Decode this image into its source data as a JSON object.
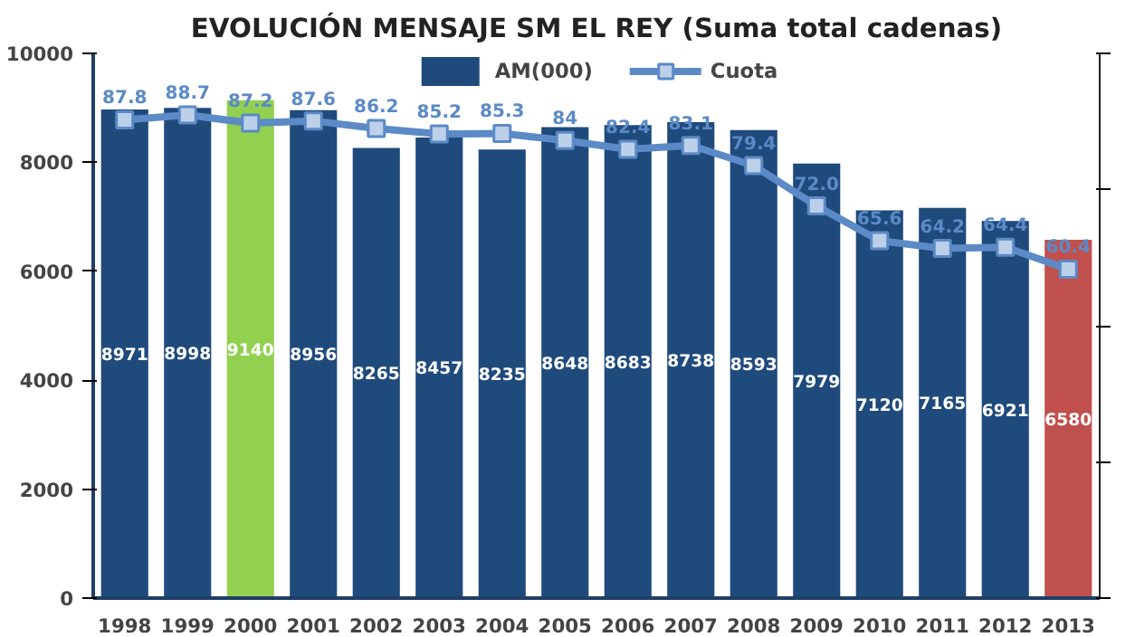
{
  "chart_data": {
    "type": "bar",
    "title": "EVOLUCIÓN MENSAJE SM EL REY (Suma total cadenas)",
    "categories": [
      "1998",
      "1999",
      "2000",
      "2001",
      "2002",
      "2003",
      "2004",
      "2005",
      "2006",
      "2007",
      "2008",
      "2009",
      "2010",
      "2011",
      "2012",
      "2013"
    ],
    "series": [
      {
        "name": "AM(000)",
        "colors": [
          "#1f4a7c",
          "#1f4a7c",
          "#92d050",
          "#1f4a7c",
          "#1f4a7c",
          "#1f4a7c",
          "#1f4a7c",
          "#1f4a7c",
          "#1f4a7c",
          "#1f4a7c",
          "#1f4a7c",
          "#1f4a7c",
          "#1f4a7c",
          "#1f4a7c",
          "#1f4a7c",
          "#c0504d"
        ],
        "values": [
          8971,
          8998,
          9140,
          8956,
          8265,
          8457,
          8235,
          8648,
          8683,
          8738,
          8593,
          7979,
          7120,
          7165,
          6921,
          6580
        ]
      },
      {
        "name": "Cuota",
        "type": "line",
        "axis": "y2",
        "color": "#5b8ac6",
        "marker": "square",
        "values": [
          87.8,
          88.7,
          87.2,
          87.6,
          86.2,
          85.2,
          85.3,
          84,
          82.4,
          83.1,
          79.4,
          72.0,
          65.6,
          64.2,
          64.4,
          60.4
        ],
        "value_labels": [
          "87.8",
          "88.7",
          "87.2",
          "87.6",
          "86.2",
          "85.2",
          "85.3",
          "84",
          "82.4",
          "83.1",
          "79.4",
          "72.0",
          "65.6",
          "64.2",
          "64.4",
          "60.4"
        ]
      }
    ],
    "ylim": [
      0,
      10000
    ],
    "yticks": [
      0,
      2000,
      4000,
      6000,
      8000,
      10000
    ],
    "y2lim": [
      0,
      100
    ],
    "y2ticks": [
      {
        "value": 0,
        "label": null
      },
      {
        "value": 25,
        "label": null
      },
      {
        "value": 50,
        "label": null
      },
      {
        "value": 75,
        "label": null
      },
      {
        "value": 100,
        "label": null
      }
    ],
    "data_labels": true,
    "legend": "top",
    "grid": false
  }
}
